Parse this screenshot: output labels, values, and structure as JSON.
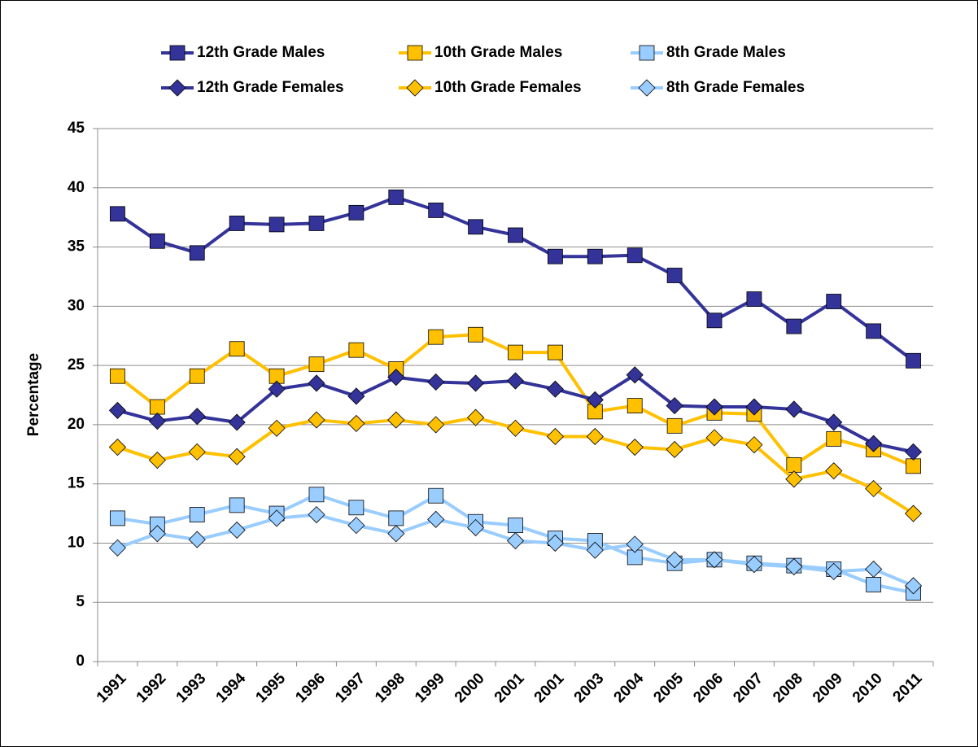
{
  "chart_data": {
    "type": "line",
    "y_label": "Percentage",
    "categories": [
      "1991",
      "1992",
      "1993",
      "1994",
      "1995",
      "1996",
      "1997",
      "1998",
      "1999",
      "2000",
      "2001",
      "2001",
      "2003",
      "2004",
      "2005",
      "2006",
      "2007",
      "2008",
      "2009",
      "2010",
      "2011"
    ],
    "series": [
      {
        "name": "12th Grade Males",
        "color": "#333399",
        "marker": "square",
        "marker_fill": "#333399",
        "values": [
          37.8,
          35.5,
          34.5,
          37.0,
          36.9,
          37.0,
          37.9,
          39.2,
          38.1,
          36.7,
          36.0,
          34.2,
          34.2,
          34.3,
          32.6,
          28.8,
          30.6,
          28.3,
          30.4,
          27.9,
          25.4
        ]
      },
      {
        "name": "10th Grade Males",
        "color": "#ffc000",
        "marker": "square",
        "marker_fill": "#ffc000",
        "values": [
          24.1,
          21.5,
          24.1,
          26.4,
          24.1,
          25.1,
          26.3,
          24.7,
          27.4,
          27.6,
          26.1,
          26.1,
          21.1,
          21.6,
          19.9,
          21.0,
          20.9,
          16.6,
          18.8,
          17.9,
          16.5
        ]
      },
      {
        "name": "8th Grade Males",
        "color": "#99ccff",
        "marker": "square",
        "marker_fill": "#99ccff",
        "values": [
          12.1,
          11.6,
          12.4,
          13.2,
          12.5,
          14.1,
          13.0,
          12.1,
          14.0,
          11.8,
          11.5,
          10.4,
          10.2,
          8.8,
          8.3,
          8.6,
          8.3,
          8.1,
          7.8,
          6.5,
          5.8
        ]
      },
      {
        "name": "12th Grade Females",
        "color": "#333399",
        "marker": "diamond",
        "marker_fill": "#333399",
        "values": [
          21.2,
          20.3,
          20.7,
          20.2,
          23.0,
          23.5,
          22.4,
          24.0,
          23.6,
          23.5,
          23.7,
          23.0,
          22.1,
          24.2,
          21.6,
          21.5,
          21.5,
          21.3,
          20.2,
          18.4,
          17.7
        ]
      },
      {
        "name": "10th Grade Females",
        "color": "#ffc000",
        "marker": "diamond",
        "marker_fill": "#ffc000",
        "values": [
          18.1,
          17.0,
          17.7,
          17.3,
          19.7,
          20.4,
          20.1,
          20.4,
          20.0,
          20.6,
          19.7,
          19.0,
          19.0,
          18.1,
          17.9,
          18.9,
          18.3,
          15.4,
          16.1,
          14.6,
          12.5
        ]
      },
      {
        "name": "8th Grade Females",
        "color": "#99ccff",
        "marker": "diamond",
        "marker_fill": "#99ccff",
        "values": [
          9.6,
          10.8,
          10.3,
          11.1,
          12.1,
          12.4,
          11.5,
          10.8,
          12.0,
          11.3,
          10.2,
          10.0,
          9.4,
          9.9,
          8.6,
          8.6,
          8.2,
          8.0,
          7.6,
          7.8,
          6.4
        ]
      }
    ],
    "ylim": [
      0,
      45
    ],
    "yticks": [
      0,
      5,
      10,
      15,
      20,
      25,
      30,
      35,
      40,
      45
    ],
    "grid": true,
    "legend": "top"
  }
}
